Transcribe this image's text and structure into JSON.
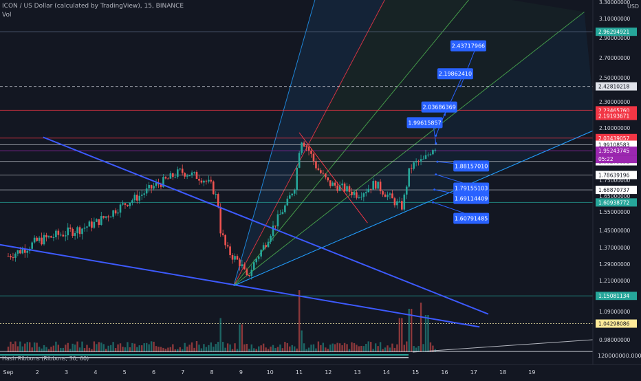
{
  "header": {
    "title": "ICON / US Dollar (calculated by TradingView), 15, BINANCE",
    "indicator": "Vol"
  },
  "hash_ribbons_label": "Hash Ribbons (Ribbons, 30, 60)",
  "currency": "USD",
  "colors": {
    "background": "#131722",
    "up": "#26a69a",
    "down": "#ef5350",
    "trendline": "#3d5afe",
    "callout": "#2962ff",
    "fan_mid": "#4caf50",
    "fan_red": "#f23645",
    "fan_blue": "#2196f3"
  },
  "chart_data": {
    "type": "candlestick",
    "symbol": "ICON / US Dollar",
    "interval": "15",
    "exchange": "BINANCE",
    "x_ticks": [
      "Sep",
      "2",
      "3",
      "4",
      "5",
      "6",
      "7",
      "8",
      "9",
      "10",
      "11",
      "12",
      "13",
      "14",
      "15",
      "16",
      "17",
      "18",
      "19"
    ],
    "y_ticks": [
      "3.30000000",
      "3.10000000",
      "2.90000000",
      "2.70000000",
      "2.50000000",
      "2.30000000",
      "2.10000000",
      "1.90000000",
      "1.75000000",
      "1.65000000",
      "1.55000000",
      "1.45000000",
      "1.37000000",
      "1.29000000",
      "1.21000000",
      "1.09000000",
      "0.98000000"
    ],
    "ylim": [
      0.95,
      3.35
    ],
    "price_path": [
      {
        "day": 0.0,
        "price": 1.33
      },
      {
        "day": 0.5,
        "price": 1.36
      },
      {
        "day": 1.0,
        "price": 1.4
      },
      {
        "day": 1.5,
        "price": 1.42
      },
      {
        "day": 2.0,
        "price": 1.44
      },
      {
        "day": 2.5,
        "price": 1.46
      },
      {
        "day": 3.0,
        "price": 1.49
      },
      {
        "day": 3.5,
        "price": 1.54
      },
      {
        "day": 4.0,
        "price": 1.6
      },
      {
        "day": 4.5,
        "price": 1.65
      },
      {
        "day": 5.0,
        "price": 1.71
      },
      {
        "day": 5.5,
        "price": 1.76
      },
      {
        "day": 5.9,
        "price": 1.81
      },
      {
        "day": 6.3,
        "price": 1.79
      },
      {
        "day": 6.7,
        "price": 1.76
      },
      {
        "day": 7.0,
        "price": 1.71
      },
      {
        "day": 7.2,
        "price": 1.62
      },
      {
        "day": 7.3,
        "price": 1.45
      },
      {
        "day": 7.5,
        "price": 1.36
      },
      {
        "day": 7.7,
        "price": 1.33
      },
      {
        "day": 8.0,
        "price": 1.29
      },
      {
        "day": 8.2,
        "price": 1.22
      },
      {
        "day": 8.5,
        "price": 1.31
      },
      {
        "day": 8.8,
        "price": 1.38
      },
      {
        "day": 9.0,
        "price": 1.44
      },
      {
        "day": 9.3,
        "price": 1.52
      },
      {
        "day": 9.6,
        "price": 1.61
      },
      {
        "day": 9.85,
        "price": 1.72
      },
      {
        "day": 10.05,
        "price": 2.04
      },
      {
        "day": 10.3,
        "price": 1.97
      },
      {
        "day": 10.6,
        "price": 1.84
      },
      {
        "day": 11.0,
        "price": 1.73
      },
      {
        "day": 11.5,
        "price": 1.7
      },
      {
        "day": 12.0,
        "price": 1.66
      },
      {
        "day": 12.3,
        "price": 1.69
      },
      {
        "day": 12.6,
        "price": 1.73
      },
      {
        "day": 13.0,
        "price": 1.66
      },
      {
        "day": 13.3,
        "price": 1.61
      },
      {
        "day": 13.55,
        "price": 1.58
      },
      {
        "day": 13.8,
        "price": 1.83
      },
      {
        "day": 14.0,
        "price": 1.87
      },
      {
        "day": 14.3,
        "price": 1.89
      },
      {
        "day": 14.5,
        "price": 1.95
      },
      {
        "day": 14.65,
        "price": 1.99
      },
      {
        "day": 14.75,
        "price": 1.96
      }
    ],
    "volume_spikes": [
      {
        "day": 7.3,
        "h": 0.55
      },
      {
        "day": 8.0,
        "h": 0.45
      },
      {
        "day": 10.0,
        "h": 1.0
      },
      {
        "day": 10.1,
        "h": 0.35
      },
      {
        "day": 13.5,
        "h": 0.55
      },
      {
        "day": 13.8,
        "h": 0.7
      },
      {
        "day": 14.2,
        "h": 0.8
      },
      {
        "day": 14.4,
        "h": 0.6
      }
    ],
    "trendlines": [
      {
        "from": {
          "day": 1.2,
          "price": 2.04
        },
        "to": {
          "day": 16.5,
          "price": 1.08
        }
      },
      {
        "from": {
          "day": -1.0,
          "price": 1.4
        },
        "to": {
          "day": 16.2,
          "price": 1.03
        }
      },
      {
        "from": {
          "day": 7.75,
          "price": 1.19
        },
        "to": {
          "day": 20.2,
          "price": 2.09
        }
      },
      {
        "from": {
          "day": 10.0,
          "price": 2.07
        },
        "to": {
          "day": 12.35,
          "price": 1.49
        }
      }
    ],
    "fan_origin": {
      "day": 7.75,
      "price": 1.19
    },
    "fan_rays": [
      {
        "day": 10.6,
        "price": 3.4,
        "color": "blue"
      },
      {
        "day": 13.05,
        "price": 3.4,
        "color": "red"
      },
      {
        "day": 16.0,
        "price": 3.4,
        "color": "green"
      },
      {
        "day": 19.8,
        "price": 3.18,
        "color": "green"
      },
      {
        "day": 20.2,
        "price": 2.09,
        "color": "blue"
      }
    ],
    "horizontal_levels": [
      {
        "price": 2.96294921,
        "label": "2.96294921",
        "bg": "#26a69a",
        "fg": "#ffffff",
        "style": "solid",
        "color": "#5b6b85"
      },
      {
        "price": 2.42810218,
        "label": "2.42810218",
        "bg": "#e0e3eb",
        "fg": "#131722",
        "style": "dashed",
        "color": "#d1d4dc"
      },
      {
        "price": 2.2346576,
        "label": "2.23465760",
        "bg": "#f23645",
        "fg": "#ffffff",
        "style": "solid",
        "color": "#f23645"
      },
      {
        "price": 2.19193671,
        "label": "2.19193671",
        "bg": "#f23645",
        "fg": "#ffffff",
        "style": "none",
        "color": "#f23645"
      },
      {
        "price": 2.03439057,
        "label": "2.03439057",
        "bg": "#f23645",
        "fg": "#ffffff",
        "style": "solid",
        "color": "#f23645"
      },
      {
        "price": 1.99108583,
        "label": "1.99108583",
        "bg": "#ffffff",
        "fg": "#131722",
        "style": "solid",
        "color": "#b2b5be"
      },
      {
        "price": 1.95243745,
        "label": "1.95243745",
        "bg": "#9c27b0",
        "fg": "#ffffff",
        "style": "solid",
        "color": "#9c27b0"
      },
      {
        "price": 1.88275851,
        "label": "1.88275851",
        "bg": "#ffffff",
        "fg": "#131722",
        "style": "solid",
        "color": "#b2b5be"
      },
      {
        "price": 1.78639196,
        "label": "1.78639196",
        "bg": "#ffffff",
        "fg": "#131722",
        "style": "solid",
        "color": "#b2b5be"
      },
      {
        "price": 1.68870737,
        "label": "1.68870737",
        "bg": "#ffffff",
        "fg": "#131722",
        "style": "solid",
        "color": "#b2b5be"
      },
      {
        "price": 1.60938772,
        "label": "1.60938772",
        "bg": "#26a69a",
        "fg": "#ffffff",
        "style": "solid",
        "color": "#26a69a"
      },
      {
        "price": 1.15081134,
        "label": "1.15081134",
        "bg": "#26a69a",
        "fg": "#ffffff",
        "style": "solid",
        "color": "#26a69a"
      },
      {
        "price": 1.04298086,
        "label": "1.04298086",
        "bg": "#ffeb99",
        "fg": "#131722",
        "style": "dotted",
        "color": "#f5e9a8"
      }
    ],
    "current_price_countdown": "05:22",
    "callouts": [
      {
        "label": "2.43717966",
        "box_day": 15.2,
        "box_price": 2.82,
        "point_day": 15.55,
        "point_price": 2.43
      },
      {
        "label": "2.19862410",
        "box_day": 14.75,
        "box_price": 2.54,
        "point_day": 15.0,
        "point_price": 2.2
      },
      {
        "label": "2.03686369",
        "box_day": 14.2,
        "box_price": 2.26,
        "point_day": 14.7,
        "point_price": 2.05
      },
      {
        "label": "1.99615857",
        "box_day": 13.7,
        "box_price": 2.14,
        "point_day": 14.7,
        "point_price": 2.0
      },
      {
        "label": "1.88157010",
        "box_day": 15.3,
        "box_price": 1.85,
        "point_day": 14.75,
        "point_price": 1.88
      },
      {
        "label": "1.79155103",
        "box_day": 15.3,
        "box_price": 1.7,
        "point_day": 14.7,
        "point_price": 1.79
      },
      {
        "label": "1.69114409",
        "box_day": 15.3,
        "box_price": 1.635,
        "point_day": 14.65,
        "point_price": 1.69
      },
      {
        "label": "1.60791485",
        "box_day": 15.3,
        "box_price": 1.515,
        "point_day": 14.6,
        "point_price": 1.61
      }
    ],
    "hash_ribbon_value": "120000000.00000000"
  }
}
